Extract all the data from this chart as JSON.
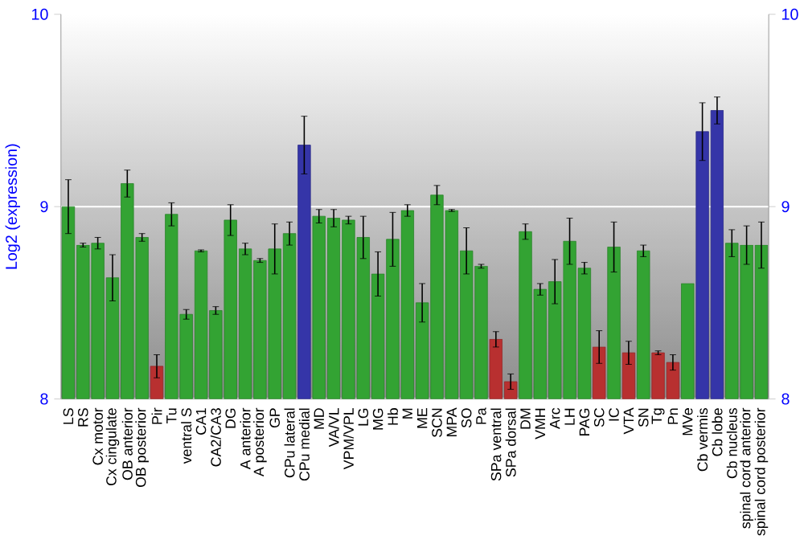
{
  "chart_data": {
    "type": "bar",
    "ylabel": "Log2 (expression)",
    "categories": [
      "LS",
      "RS",
      "Cx motor",
      "Cx cingulate",
      "OB anterior",
      "OB posterior",
      "Pir",
      "Tu",
      "ventral S",
      "CA1",
      "CA2/CA3",
      "DG",
      "A anterior",
      "A posterior",
      "GP",
      "CPu lateral",
      "CPu medial",
      "MD",
      "VA/VL",
      "VPM/VPL",
      "LG",
      "MG",
      "Hb",
      "M",
      "ME",
      "SCN",
      "MPA",
      "SO",
      "Pa",
      "SPa ventral",
      "SPa dorsal",
      "DM",
      "VMH",
      "Arc",
      "LH",
      "PAG",
      "SC",
      "IC",
      "VTA",
      "SN",
      "Tg",
      "Pn",
      "MVe",
      "Cb vermis",
      "Cb lobe",
      "Cb nucleus",
      "spinal cord anterior",
      "spinal cord posterior"
    ],
    "values": [
      9.0,
      8.8,
      8.81,
      8.63,
      9.12,
      8.84,
      8.17,
      8.96,
      8.44,
      8.77,
      8.46,
      8.93,
      8.78,
      8.72,
      8.78,
      8.86,
      9.32,
      8.95,
      8.94,
      8.93,
      8.84,
      8.65,
      8.83,
      8.98,
      8.5,
      9.06,
      8.98,
      8.77,
      8.69,
      8.31,
      8.09,
      8.87,
      8.57,
      8.61,
      8.82,
      8.68,
      8.27,
      8.79,
      8.24,
      8.77,
      8.24,
      8.19,
      8.6,
      9.39,
      9.5,
      8.81,
      8.8,
      8.8
    ],
    "errors": [
      0.14,
      0.01,
      0.03,
      0.12,
      0.07,
      0.02,
      0.06,
      0.06,
      0.025,
      0.005,
      0.02,
      0.08,
      0.03,
      0.01,
      0.13,
      0.06,
      0.15,
      0.035,
      0.045,
      0.02,
      0.11,
      0.115,
      0.14,
      0.03,
      0.1,
      0.05,
      0.005,
      0.12,
      0.01,
      0.04,
      0.04,
      0.04,
      0.03,
      0.115,
      0.12,
      0.03,
      0.085,
      0.13,
      0.06,
      0.03,
      0.01,
      0.04,
      null,
      0.15,
      0.07,
      0.07,
      0.1,
      0.12
    ],
    "colors": [
      "#33a333",
      "#33a333",
      "#33a333",
      "#33a333",
      "#33a333",
      "#33a333",
      "#b83030",
      "#33a333",
      "#33a333",
      "#33a333",
      "#33a333",
      "#33a333",
      "#33a333",
      "#33a333",
      "#33a333",
      "#33a333",
      "#3535a8",
      "#33a333",
      "#33a333",
      "#33a333",
      "#33a333",
      "#33a333",
      "#33a333",
      "#33a333",
      "#33a333",
      "#33a333",
      "#33a333",
      "#33a333",
      "#33a333",
      "#b83030",
      "#b83030",
      "#33a333",
      "#33a333",
      "#33a333",
      "#33a333",
      "#33a333",
      "#b83030",
      "#33a333",
      "#b83030",
      "#33a333",
      "#b83030",
      "#b83030",
      "#33a333",
      "#3535a8",
      "#3535a8",
      "#33a333",
      "#33a333",
      "#33a333"
    ],
    "ylim": [
      8,
      10
    ],
    "yticks": [
      8,
      9,
      10
    ],
    "y2lim": [
      8,
      10
    ],
    "y2ticks": [
      8,
      9,
      10
    ],
    "grid": "y"
  }
}
